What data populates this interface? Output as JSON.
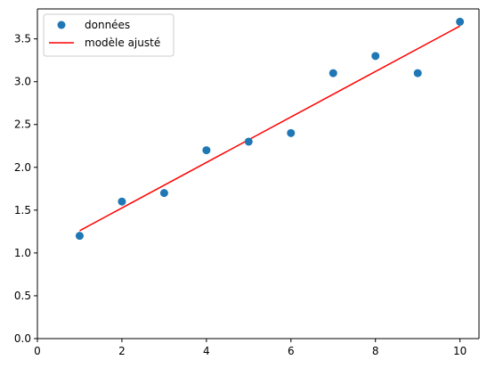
{
  "chart_data": {
    "type": "scatter",
    "title": "",
    "xlabel": "",
    "ylabel": "",
    "xlim": [
      0,
      10.45
    ],
    "ylim": [
      0,
      3.85
    ],
    "x_ticks": [
      0,
      2,
      4,
      6,
      8,
      10
    ],
    "x_tick_labels": [
      "0",
      "2",
      "4",
      "6",
      "8",
      "10"
    ],
    "y_ticks": [
      0,
      0.5,
      1.0,
      1.5,
      2.0,
      2.5,
      3.0,
      3.5
    ],
    "y_tick_labels": [
      "0.0",
      "0.5",
      "1.0",
      "1.5",
      "2.0",
      "2.5",
      "3.0",
      "3.5"
    ],
    "grid": false,
    "legend_position": "top-left",
    "series": [
      {
        "name": "données",
        "kind": "points",
        "color": "#1f77b4",
        "x": [
          1,
          2,
          3,
          4,
          5,
          6,
          7,
          8,
          9,
          10
        ],
        "y": [
          1.2,
          1.6,
          1.7,
          2.2,
          2.3,
          2.4,
          3.1,
          3.3,
          3.1,
          3.7
        ]
      },
      {
        "name": "modèle ajusté",
        "kind": "line",
        "color": "#ff0000",
        "x": [
          1,
          10
        ],
        "y": [
          1.26,
          3.65
        ]
      }
    ]
  }
}
